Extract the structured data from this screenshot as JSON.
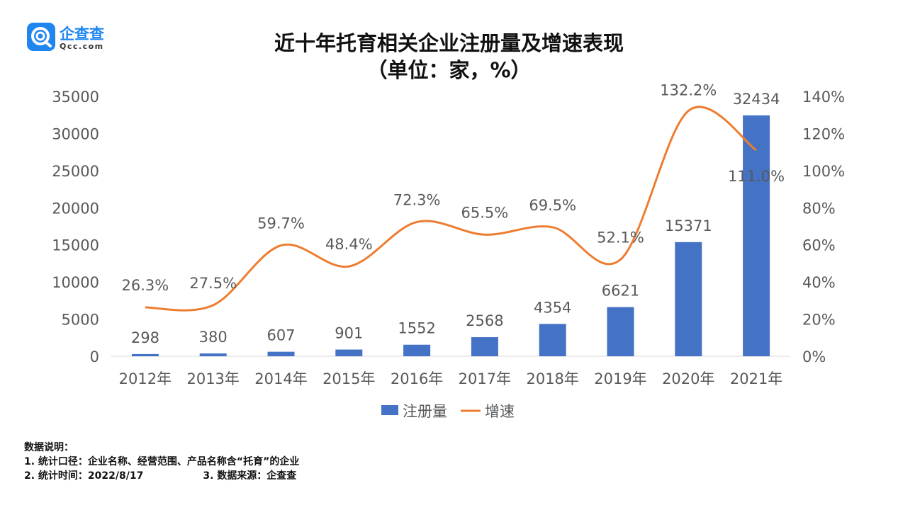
{
  "logo": {
    "name": "企查查",
    "url": "Qcc.com"
  },
  "title_line1": "近十年托育相关企业注册量及增速表现",
  "title_line2": "（单位：家，%）",
  "chart_data": {
    "type": "bar+line",
    "categories": [
      "2012年",
      "2013年",
      "2014年",
      "2015年",
      "2016年",
      "2017年",
      "2018年",
      "2019年",
      "2020年",
      "2021年"
    ],
    "series": [
      {
        "name": "注册量",
        "type": "bar",
        "axis": "left",
        "values": [
          298,
          380,
          607,
          901,
          1552,
          2568,
          4354,
          6621,
          15371,
          32434
        ],
        "labels": [
          "298",
          "380",
          "607",
          "901",
          "1552",
          "2568",
          "4354",
          "6621",
          "15371",
          "32434"
        ]
      },
      {
        "name": "增速",
        "type": "line",
        "axis": "right",
        "values": [
          26.3,
          27.5,
          59.7,
          48.4,
          72.3,
          65.5,
          69.5,
          52.1,
          132.2,
          111.0
        ],
        "labels": [
          "26.3%",
          "27.5%",
          "59.7%",
          "48.4%",
          "72.3%",
          "65.5%",
          "69.5%",
          "52.1%",
          "132.2%",
          "111.0%"
        ]
      }
    ],
    "y_left": {
      "min": 0,
      "max": 35000,
      "ticks": [
        "0",
        "5000",
        "10000",
        "15000",
        "20000",
        "25000",
        "30000",
        "35000"
      ]
    },
    "y_right": {
      "min": 0,
      "max": 140,
      "ticks": [
        "0%",
        "20%",
        "40%",
        "60%",
        "80%",
        "100%",
        "120%",
        "140%"
      ]
    },
    "legend": [
      "注册量",
      "增速"
    ],
    "legend_position": "bottom",
    "colors": {
      "bar": "#4472c4",
      "line": "#ed7d31",
      "text": "#595959",
      "axis": "#d9d9d9"
    }
  },
  "notes": {
    "heading": "数据说明：",
    "line1": "1. 统计口径：企业名称、经营范围、产品名称含“托育”的企业",
    "line2": "2. 统计时间：2022/8/17",
    "line3": "3. 数据来源：企查查"
  }
}
